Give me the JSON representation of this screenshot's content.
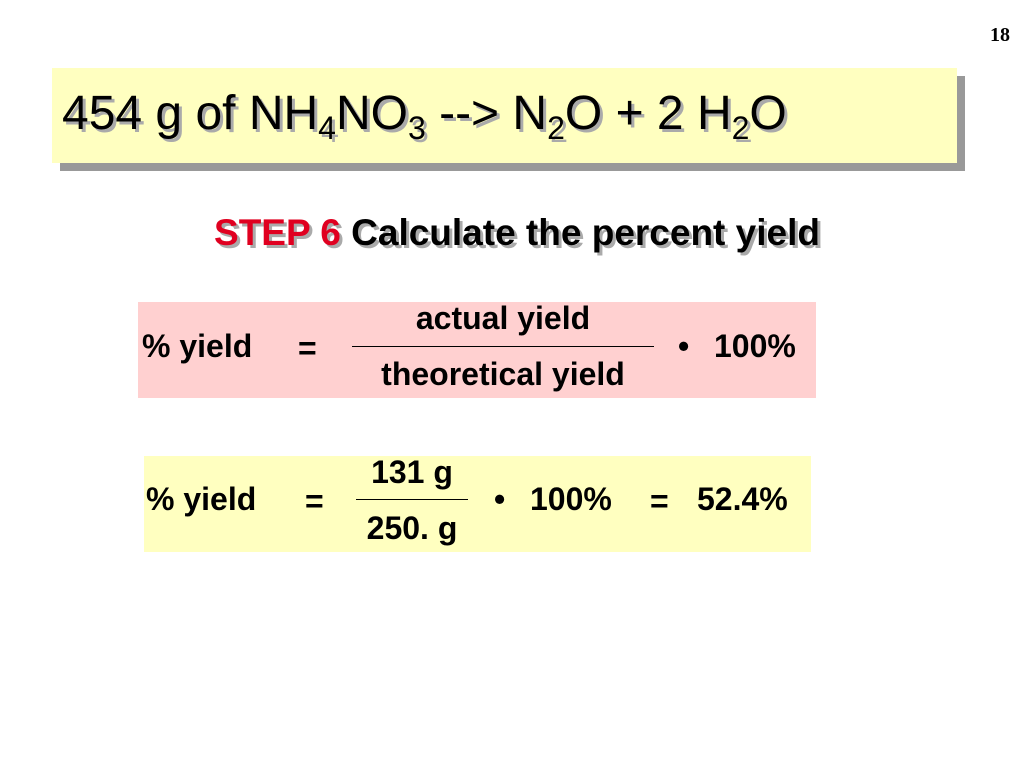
{
  "page_number": "18",
  "title": [
    "454 g of NH",
    "4",
    "NO",
    "3",
    " --> N",
    "2",
    "O + 2 H",
    "2",
    "O"
  ],
  "step": {
    "label": "STEP 6",
    "text": "Calculate the percent yield"
  },
  "formula": {
    "lhs": "% yield",
    "eq": "=",
    "numerator": "actual yield",
    "denominator": "theoretical yield",
    "times": "•",
    "factor": "100%"
  },
  "calculation": {
    "lhs": "% yield",
    "eq": "=",
    "numerator": "131 g",
    "denominator": "250. g",
    "times": "•",
    "factor": "100%",
    "eq2": "=",
    "result": "52.4%"
  }
}
